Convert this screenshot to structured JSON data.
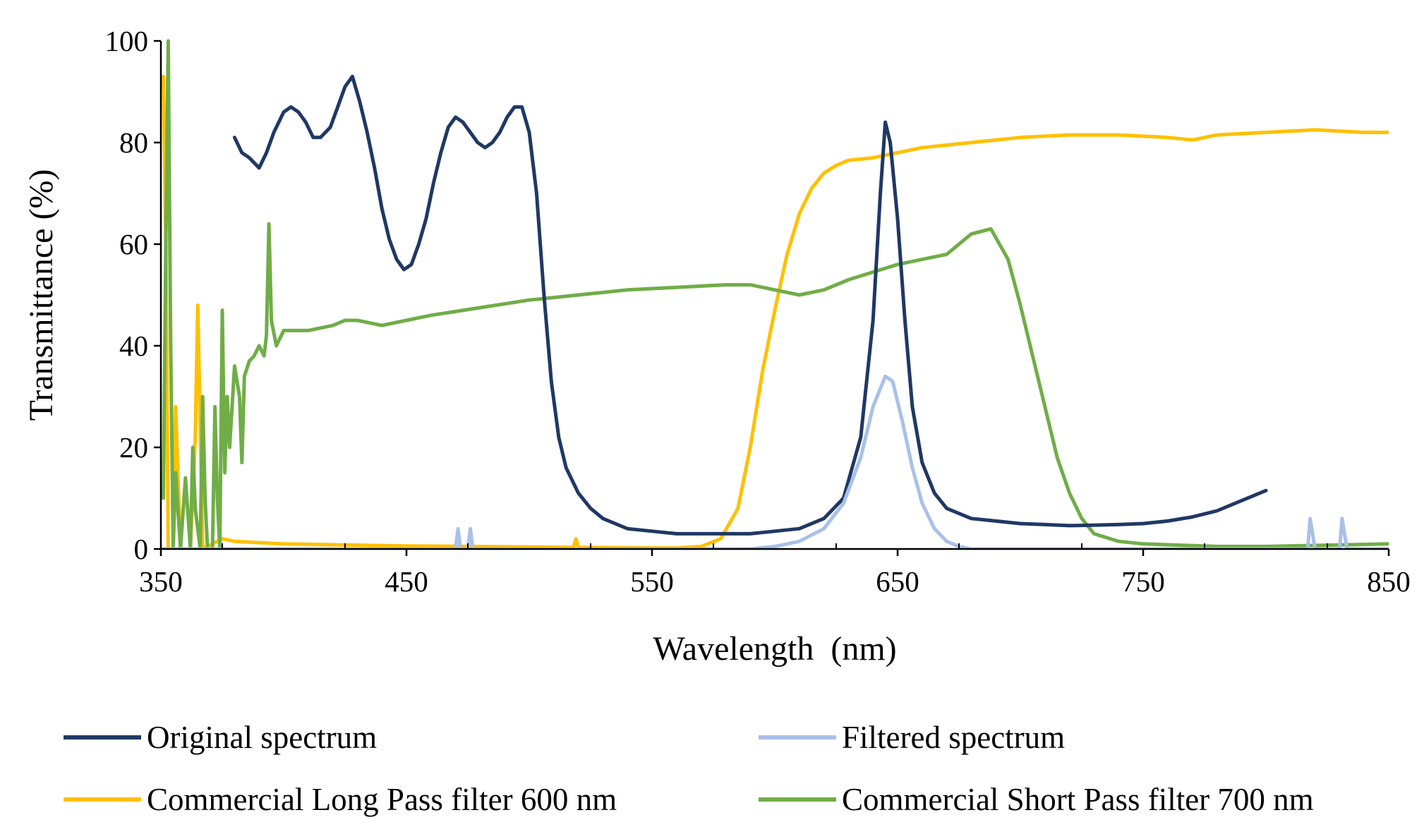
{
  "chart_data": {
    "type": "line",
    "title": "",
    "xlabel": "Wavelength  (nm)",
    "ylabel": "Transmittance (%)",
    "xlim": [
      350,
      850
    ],
    "ylim": [
      0,
      100
    ],
    "xticks": [
      350,
      450,
      550,
      650,
      750,
      850
    ],
    "xtick_labels": [
      "350",
      "450",
      "550",
      "650",
      "750",
      "850"
    ],
    "yticks": [
      0,
      20,
      40,
      60,
      80,
      100
    ],
    "ytick_labels": [
      "0",
      "20",
      "40",
      "60",
      "80",
      "100"
    ],
    "grid": false,
    "legend_position": "bottom",
    "series": [
      {
        "name": "Original spectrum",
        "color": "#203864",
        "points": [
          [
            380,
            81
          ],
          [
            383,
            78
          ],
          [
            386,
            77
          ],
          [
            390,
            75
          ],
          [
            393,
            78
          ],
          [
            396,
            82
          ],
          [
            400,
            86
          ],
          [
            403,
            87
          ],
          [
            406,
            86
          ],
          [
            409,
            84
          ],
          [
            412,
            81
          ],
          [
            415,
            81
          ],
          [
            419,
            83
          ],
          [
            422,
            87
          ],
          [
            425,
            91
          ],
          [
            428,
            93
          ],
          [
            431,
            88
          ],
          [
            434,
            82
          ],
          [
            437,
            75
          ],
          [
            440,
            67
          ],
          [
            443,
            61
          ],
          [
            446,
            57
          ],
          [
            449,
            55
          ],
          [
            452,
            56
          ],
          [
            455,
            60
          ],
          [
            458,
            65
          ],
          [
            461,
            72
          ],
          [
            464,
            78
          ],
          [
            467,
            83
          ],
          [
            470,
            85
          ],
          [
            473,
            84
          ],
          [
            476,
            82
          ],
          [
            479,
            80
          ],
          [
            482,
            79
          ],
          [
            485,
            80
          ],
          [
            488,
            82
          ],
          [
            491,
            85
          ],
          [
            494,
            87
          ],
          [
            497,
            87
          ],
          [
            500,
            82
          ],
          [
            503,
            70
          ],
          [
            506,
            50
          ],
          [
            509,
            33
          ],
          [
            512,
            22
          ],
          [
            515,
            16
          ],
          [
            520,
            11
          ],
          [
            525,
            8
          ],
          [
            530,
            6
          ],
          [
            540,
            4
          ],
          [
            550,
            3.5
          ],
          [
            560,
            3
          ],
          [
            570,
            3
          ],
          [
            580,
            3
          ],
          [
            590,
            3
          ],
          [
            600,
            3.5
          ],
          [
            610,
            4
          ],
          [
            620,
            6
          ],
          [
            628,
            10
          ],
          [
            635,
            22
          ],
          [
            640,
            45
          ],
          [
            643,
            70
          ],
          [
            645,
            84
          ],
          [
            647,
            80
          ],
          [
            650,
            65
          ],
          [
            653,
            45
          ],
          [
            656,
            28
          ],
          [
            660,
            17
          ],
          [
            665,
            11
          ],
          [
            670,
            8
          ],
          [
            680,
            6
          ],
          [
            690,
            5.5
          ],
          [
            700,
            5
          ],
          [
            710,
            4.8
          ],
          [
            720,
            4.6
          ],
          [
            730,
            4.7
          ],
          [
            740,
            4.8
          ],
          [
            750,
            5
          ],
          [
            760,
            5.5
          ],
          [
            770,
            6.3
          ],
          [
            780,
            7.5
          ],
          [
            790,
            9.5
          ],
          [
            800,
            11.5
          ]
        ]
      },
      {
        "name": "Filtered spectrum",
        "color": "#a9c0e8",
        "points": [
          [
            350,
            0
          ],
          [
            460,
            0
          ],
          [
            470,
            0
          ],
          [
            471,
            4
          ],
          [
            472,
            0
          ],
          [
            475,
            0
          ],
          [
            476,
            4
          ],
          [
            477,
            0
          ],
          [
            540,
            0
          ],
          [
            590,
            0
          ],
          [
            600,
            0.5
          ],
          [
            610,
            1.5
          ],
          [
            620,
            4
          ],
          [
            628,
            9
          ],
          [
            635,
            18
          ],
          [
            640,
            28
          ],
          [
            645,
            34
          ],
          [
            648,
            33
          ],
          [
            652,
            25
          ],
          [
            656,
            16
          ],
          [
            660,
            9
          ],
          [
            665,
            4
          ],
          [
            670,
            1.5
          ],
          [
            675,
            0.5
          ],
          [
            680,
            0
          ],
          [
            750,
            0
          ],
          [
            817,
            0
          ],
          [
            818,
            6
          ],
          [
            820,
            0
          ],
          [
            830,
            0
          ],
          [
            831,
            6
          ],
          [
            833,
            0
          ],
          [
            850,
            0
          ]
        ]
      },
      {
        "name": "Commercial Long Pass filter 600 nm",
        "color": "#ffc000",
        "points": [
          [
            351,
            93
          ],
          [
            352,
            60
          ],
          [
            353,
            0
          ],
          [
            355,
            0
          ],
          [
            356,
            28
          ],
          [
            358,
            0
          ],
          [
            362,
            0
          ],
          [
            364,
            22
          ],
          [
            365,
            48
          ],
          [
            366,
            25
          ],
          [
            367,
            0
          ],
          [
            375,
            2
          ],
          [
            380,
            1.5
          ],
          [
            400,
            1
          ],
          [
            450,
            0.6
          ],
          [
            500,
            0.4
          ],
          [
            518,
            0.3
          ],
          [
            519,
            2
          ],
          [
            520,
            0.3
          ],
          [
            560,
            0.2
          ],
          [
            570,
            0.5
          ],
          [
            578,
            2
          ],
          [
            585,
            8
          ],
          [
            590,
            20
          ],
          [
            595,
            35
          ],
          [
            600,
            47
          ],
          [
            605,
            58
          ],
          [
            610,
            66
          ],
          [
            615,
            71
          ],
          [
            620,
            74
          ],
          [
            625,
            75.5
          ],
          [
            630,
            76.5
          ],
          [
            640,
            77
          ],
          [
            650,
            78
          ],
          [
            660,
            79
          ],
          [
            680,
            80
          ],
          [
            700,
            81
          ],
          [
            720,
            81.5
          ],
          [
            740,
            81.5
          ],
          [
            760,
            81
          ],
          [
            770,
            80.5
          ],
          [
            780,
            81.5
          ],
          [
            800,
            82
          ],
          [
            820,
            82.5
          ],
          [
            840,
            82
          ],
          [
            850,
            82
          ]
        ]
      },
      {
        "name": "Commercial Short Pass filter 700 nm",
        "color": "#70ad47",
        "points": [
          [
            351,
            10
          ],
          [
            352,
            60
          ],
          [
            353,
            100
          ],
          [
            354,
            40
          ],
          [
            355,
            0
          ],
          [
            356,
            15
          ],
          [
            358,
            0
          ],
          [
            360,
            14
          ],
          [
            362,
            0
          ],
          [
            363,
            20
          ],
          [
            364,
            8
          ],
          [
            366,
            0
          ],
          [
            367,
            30
          ],
          [
            368,
            10
          ],
          [
            369,
            0
          ],
          [
            371,
            0
          ],
          [
            372,
            28
          ],
          [
            373,
            10
          ],
          [
            374,
            0
          ],
          [
            375,
            47
          ],
          [
            376,
            15
          ],
          [
            377,
            30
          ],
          [
            378,
            20
          ],
          [
            380,
            36
          ],
          [
            382,
            30
          ],
          [
            383,
            17
          ],
          [
            384,
            34
          ],
          [
            386,
            37
          ],
          [
            388,
            38
          ],
          [
            390,
            40
          ],
          [
            392,
            38
          ],
          [
            393,
            42
          ],
          [
            394,
            64
          ],
          [
            395,
            45
          ],
          [
            397,
            40
          ],
          [
            400,
            43
          ],
          [
            410,
            43
          ],
          [
            420,
            44
          ],
          [
            425,
            45
          ],
          [
            430,
            45
          ],
          [
            440,
            44
          ],
          [
            450,
            45
          ],
          [
            460,
            46
          ],
          [
            480,
            47.5
          ],
          [
            500,
            49
          ],
          [
            520,
            50
          ],
          [
            540,
            51
          ],
          [
            560,
            51.5
          ],
          [
            580,
            52
          ],
          [
            590,
            52
          ],
          [
            600,
            51
          ],
          [
            610,
            50
          ],
          [
            620,
            51
          ],
          [
            630,
            53
          ],
          [
            640,
            54.5
          ],
          [
            650,
            56
          ],
          [
            660,
            57
          ],
          [
            670,
            58
          ],
          [
            680,
            62
          ],
          [
            688,
            63
          ],
          [
            695,
            57
          ],
          [
            700,
            48
          ],
          [
            705,
            38
          ],
          [
            710,
            28
          ],
          [
            715,
            18
          ],
          [
            720,
            11
          ],
          [
            725,
            6
          ],
          [
            730,
            3
          ],
          [
            740,
            1.5
          ],
          [
            750,
            1
          ],
          [
            780,
            0.5
          ],
          [
            800,
            0.5
          ],
          [
            830,
            0.8
          ],
          [
            850,
            1
          ]
        ]
      }
    ]
  }
}
